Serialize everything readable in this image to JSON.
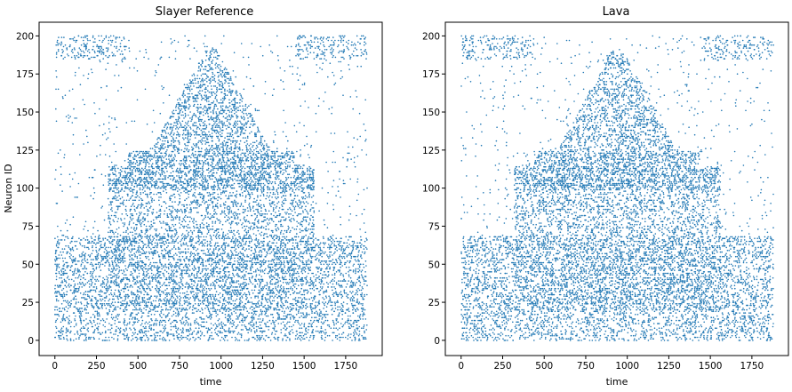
{
  "colors": {
    "points": "#1f77b4",
    "axes": "#000000",
    "background": "#ffffff"
  },
  "chart_data": [
    {
      "type": "scatter",
      "title": "Slayer Reference",
      "xlabel": "time",
      "ylabel": "Neuron ID",
      "xlim": [
        -95,
        1970
      ],
      "ylim": [
        -10,
        209
      ],
      "xticks": [
        0,
        250,
        500,
        750,
        1000,
        1250,
        1500,
        1750
      ],
      "yticks": [
        0,
        25,
        50,
        75,
        100,
        125,
        150,
        175,
        200
      ],
      "marker": "small dot",
      "grid": false,
      "regions": [
        {
          "name": "bottom band",
          "x": [
            0,
            1880
          ],
          "y": [
            0,
            22
          ]
        },
        {
          "name": "lower structure",
          "x": [
            0,
            1880
          ],
          "y": [
            20,
            70
          ]
        },
        {
          "name": "middle structure",
          "x": [
            320,
            1560
          ],
          "y": [
            50,
            125
          ]
        },
        {
          "name": "dome",
          "x": [
            540,
            1340
          ],
          "y": [
            110,
            192
          ]
        },
        {
          "name": "top band",
          "x": [
            0,
            1880
          ],
          "y": [
            185,
            200
          ]
        }
      ]
    },
    {
      "type": "scatter",
      "title": "Lava",
      "xlabel": "time",
      "ylabel": "",
      "xlim": [
        -95,
        1970
      ],
      "ylim": [
        -10,
        209
      ],
      "xticks": [
        0,
        250,
        500,
        750,
        1000,
        1250,
        1500,
        1750
      ],
      "yticks": [
        0,
        25,
        50,
        75,
        100,
        125,
        150,
        175,
        200
      ],
      "marker": "small dot",
      "grid": false,
      "regions": [
        {
          "name": "bottom band",
          "x": [
            0,
            1880
          ],
          "y": [
            0,
            22
          ]
        },
        {
          "name": "lower structure",
          "x": [
            0,
            1880
          ],
          "y": [
            20,
            70
          ]
        },
        {
          "name": "middle structure",
          "x": [
            320,
            1560
          ],
          "y": [
            50,
            125
          ]
        },
        {
          "name": "dome",
          "x": [
            540,
            1340
          ],
          "y": [
            110,
            192
          ]
        },
        {
          "name": "top band",
          "x": [
            0,
            1880
          ],
          "y": [
            185,
            200
          ]
        }
      ]
    }
  ]
}
